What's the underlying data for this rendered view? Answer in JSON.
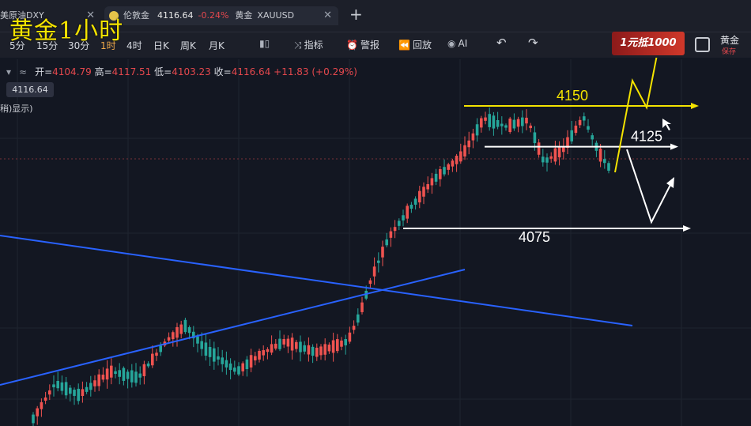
{
  "tabs": {
    "tab1_label": "美原油DXY",
    "tab2_label": "伦敦金",
    "tab2_price": "4116.64",
    "tab2_change": "-0.24%",
    "tab2_name": "黄金",
    "tab2_symbol": "XAUUSD",
    "close_glyph": "✕",
    "add_glyph": "+"
  },
  "overlay_title": "黄金1小时",
  "toolbar": {
    "timeframes": [
      "5分",
      "15分",
      "30分",
      "1时",
      "4时",
      "日K",
      "周K",
      "月K"
    ],
    "active_timeframe": "1时",
    "indicator_label": "指标",
    "alert_label": "警报",
    "replay_label": "回放",
    "ai_label": "AI",
    "promo_label": "1元抵1000",
    "gold_label": "黄金",
    "save_label": "保存"
  },
  "ohlc": {
    "open_label": "开=",
    "open": "4104.79",
    "high_label": "高=",
    "high": "4117.51",
    "low_label": "低=",
    "low": "4103.23",
    "close_label": "收=",
    "close": "4116.64",
    "change": "+11.83 (+0.29%)"
  },
  "price_tag": "4116.64",
  "hidden_note": "稍)显示)",
  "colors": {
    "background": "#131722",
    "up": "#ef5350",
    "down": "#26a69a",
    "annotation_yellow": "#f4e300",
    "annotation_white": "#ffffff",
    "trendline_blue": "#2962ff"
  },
  "chart_data": {
    "type": "candlestick",
    "symbol": "XAUUSD",
    "timeframe": "1时",
    "levels": [
      {
        "label": "4150",
        "value": 4150,
        "color": "#f4e300"
      },
      {
        "label": "4125",
        "value": 4125,
        "color": "#ffffff"
      },
      {
        "label": "4075",
        "value": 4075,
        "color": "#ffffff"
      }
    ],
    "annotations": [
      "4150",
      "4125",
      "4075"
    ],
    "current_price": 4116.64
  }
}
